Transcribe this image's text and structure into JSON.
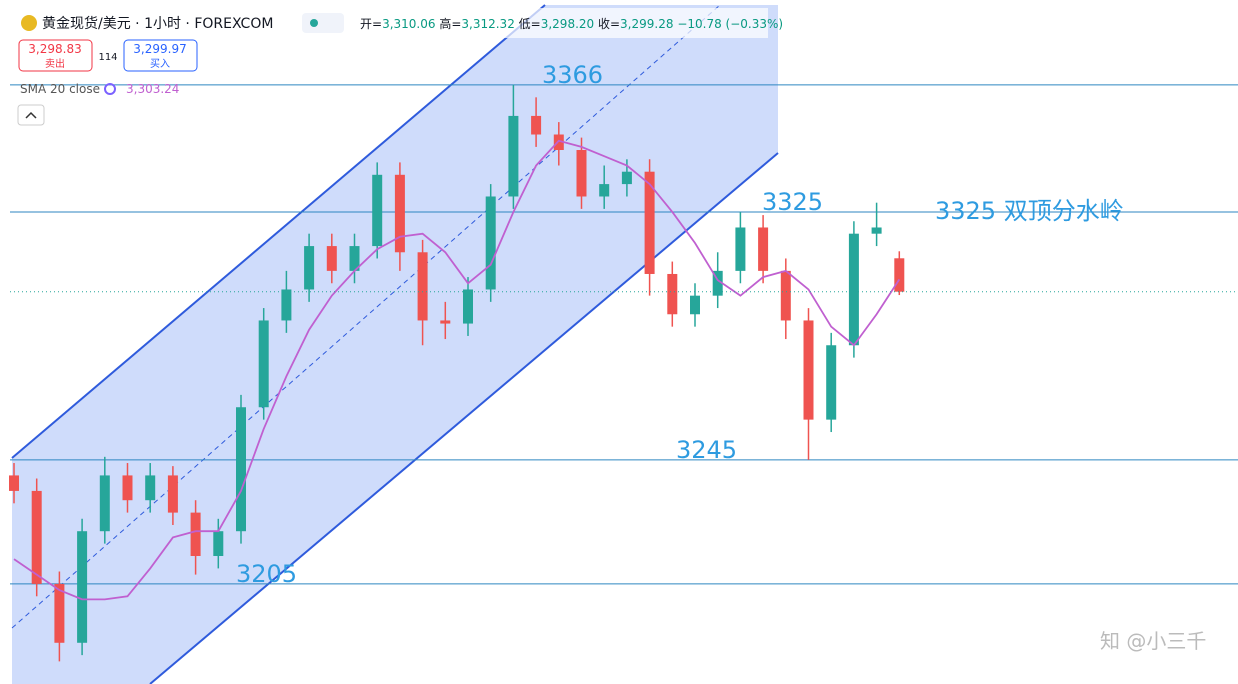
{
  "header": {
    "symbol": "黄金现货/美元 · 1小时 · FOREXCOM",
    "open_label": "开=",
    "open": "3,310.06",
    "high_label": "高=",
    "high": "3,312.32",
    "low_label": "低=",
    "low": "3,298.20",
    "close_label": "收=",
    "close": "3,299.28",
    "change": "−10.78 (−0.33%)",
    "sell_price": "3,298.83",
    "sell_label": "卖出",
    "spread": "114",
    "buy_price": "3,299.97",
    "buy_label": "买入",
    "sma_label": "SMA 20 close",
    "sma_value": "3,303.24"
  },
  "watermark": "知 @小三千",
  "chart_data": {
    "type": "candlestick",
    "ylim": [
      3172.7,
      3393.4
    ],
    "open": [
      3240,
      3235,
      3205,
      3186,
      3222,
      3240,
      3232,
      3240,
      3228,
      3214,
      3222,
      3262,
      3290,
      3300,
      3314,
      3306,
      3314,
      3337,
      3312,
      3290,
      3289,
      3300,
      3330,
      3356,
      3350,
      3345,
      3330,
      3334,
      3338,
      3305,
      3292,
      3298,
      3306,
      3320,
      3306,
      3290,
      3258,
      3282,
      3318,
      3310.06
    ],
    "high": [
      3244,
      3239,
      3209,
      3226,
      3246,
      3244,
      3244,
      3243,
      3232,
      3226,
      3266,
      3294,
      3306,
      3318,
      3318,
      3318,
      3341,
      3341,
      3316,
      3296,
      3304,
      3334,
      3366,
      3362,
      3354,
      3349,
      3340,
      3342,
      3342,
      3309,
      3302,
      3312,
      3325,
      3324,
      3310,
      3294,
      3286,
      3322,
      3328,
      3312.32
    ],
    "low": [
      3231,
      3201,
      3180,
      3182,
      3218,
      3228,
      3228,
      3224,
      3208,
      3210,
      3218,
      3258,
      3286,
      3296,
      3302,
      3302,
      3310,
      3306,
      3282,
      3284,
      3285,
      3296,
      3326,
      3346,
      3340,
      3326,
      3326,
      3330,
      3298,
      3288,
      3288,
      3294,
      3302,
      3302,
      3284,
      3245,
      3254,
      3278,
      3314,
      3298.2
    ],
    "close": [
      3235,
      3205,
      3186,
      3222,
      3240,
      3232,
      3240,
      3228,
      3214,
      3222,
      3262,
      3290,
      3300,
      3314,
      3306,
      3314,
      3337,
      3312,
      3290,
      3289,
      3300,
      3330,
      3356,
      3350,
      3345,
      3330,
      3334,
      3338,
      3305,
      3292,
      3298,
      3306,
      3320,
      3306,
      3290,
      3258,
      3282,
      3318,
      3320,
      3299.28
    ],
    "sma": {
      "color": "#c060d0",
      "values": [
        3213,
        3208,
        3203,
        3200,
        3200,
        3201,
        3210,
        3220,
        3222,
        3222,
        3235,
        3255,
        3272,
        3287,
        3298,
        3306,
        3313,
        3317,
        3318,
        3312,
        3302,
        3308,
        3325,
        3340,
        3348,
        3346,
        3343,
        3340,
        3334,
        3325,
        3315,
        3303,
        3298,
        3304,
        3306,
        3300,
        3288,
        3282,
        3292,
        3303.24
      ]
    },
    "up_color": "#26a69a",
    "down_color": "#ef5350",
    "levels": [
      3366,
      3325,
      3245,
      3205
    ],
    "level_color": "#2e86c1",
    "annotation": "3325 双顶分水岭"
  }
}
